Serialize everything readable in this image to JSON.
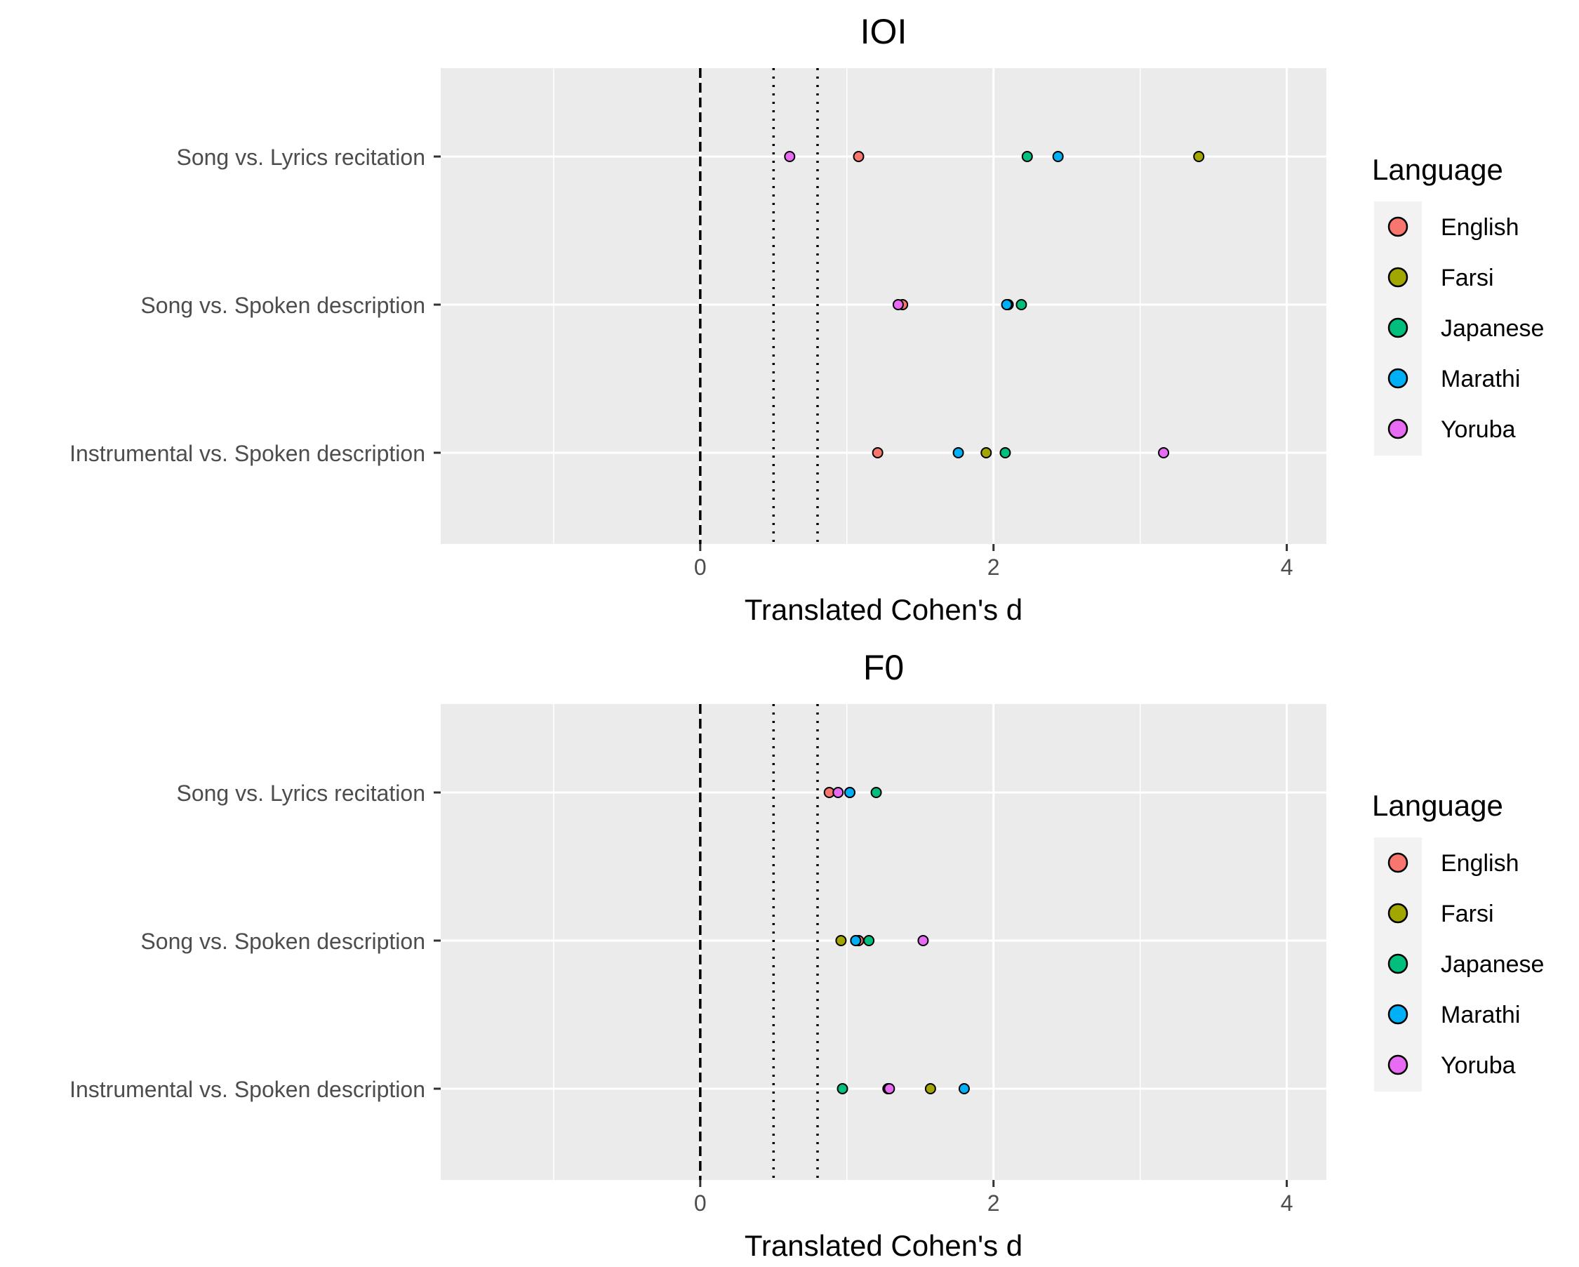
{
  "chart_data": [
    {
      "type": "scatter",
      "title": "IOI",
      "xlabel": "Translated Cohen's d",
      "ylabel": "",
      "xlim": [
        -1.77,
        4.27
      ],
      "xticks": [
        0,
        2,
        4
      ],
      "reference_lines": [
        {
          "x": 0,
          "style": "dashed"
        },
        {
          "x": 0.5,
          "style": "dotted"
        },
        {
          "x": 0.8,
          "style": "dotted"
        }
      ],
      "categories": [
        "Song vs. Lyrics recitation",
        "Song vs. Spoken description",
        "Instrumental vs. Spoken description"
      ],
      "legend": {
        "title": "Language",
        "position": "right"
      },
      "series": [
        {
          "name": "English",
          "color": "#F8766D",
          "values": [
            1.08,
            1.38,
            1.21
          ]
        },
        {
          "name": "Farsi",
          "color": "#A3A500",
          "values": [
            3.4,
            2.1,
            1.95
          ]
        },
        {
          "name": "Japanese",
          "color": "#00BF7D",
          "values": [
            2.23,
            2.19,
            2.08
          ]
        },
        {
          "name": "Marathi",
          "color": "#00B0F6",
          "values": [
            2.44,
            2.09,
            1.76
          ]
        },
        {
          "name": "Yoruba",
          "color": "#E76BF3",
          "values": [
            0.61,
            1.35,
            3.16
          ]
        }
      ]
    },
    {
      "type": "scatter",
      "title": "F0",
      "xlabel": "Translated Cohen's d",
      "ylabel": "",
      "xlim": [
        -1.77,
        4.27
      ],
      "xticks": [
        0,
        2,
        4
      ],
      "reference_lines": [
        {
          "x": 0,
          "style": "dashed"
        },
        {
          "x": 0.5,
          "style": "dotted"
        },
        {
          "x": 0.8,
          "style": "dotted"
        }
      ],
      "categories": [
        "Song vs. Lyrics recitation",
        "Song vs. Spoken description",
        "Instrumental vs. Spoken description"
      ],
      "legend": {
        "title": "Language",
        "position": "right"
      },
      "series": [
        {
          "name": "English",
          "color": "#F8766D",
          "values": [
            0.88,
            1.08,
            1.28
          ]
        },
        {
          "name": "Farsi",
          "color": "#A3A500",
          "values": [
            1.02,
            0.96,
            1.57
          ]
        },
        {
          "name": "Japanese",
          "color": "#00BF7D",
          "values": [
            1.2,
            1.15,
            0.97
          ]
        },
        {
          "name": "Marathi",
          "color": "#00B0F6",
          "values": [
            1.02,
            1.06,
            1.8
          ]
        },
        {
          "name": "Yoruba",
          "color": "#E76BF3",
          "values": [
            0.94,
            1.52,
            1.29
          ]
        }
      ]
    }
  ]
}
